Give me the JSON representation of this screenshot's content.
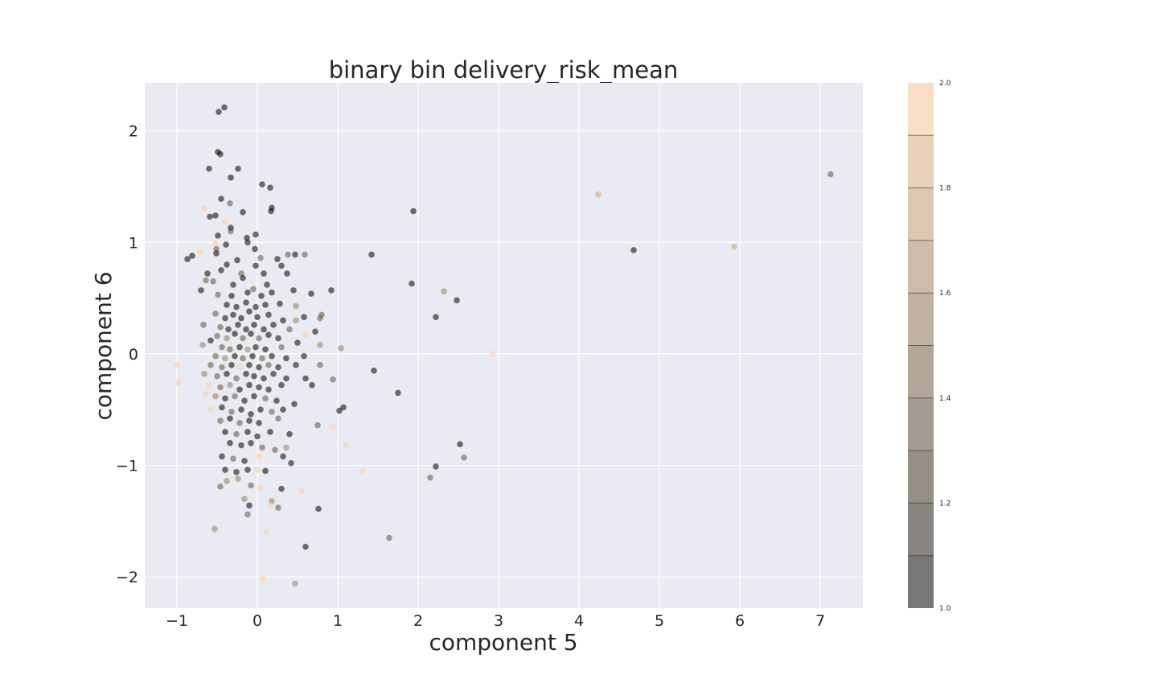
{
  "chart_data": {
    "type": "scatter",
    "title": "binary bin delivery_risk_mean",
    "xlabel": "component 5",
    "ylabel": "component 6",
    "xlim": [
      -1.4,
      7.53
    ],
    "ylim": [
      -2.28,
      2.43
    ],
    "xticks": [
      -1,
      0,
      1,
      2,
      3,
      4,
      5,
      6,
      7
    ],
    "yticks": [
      -2,
      -1,
      0,
      1,
      2
    ],
    "xtick_labels": [
      "−1",
      "0",
      "1",
      "2",
      "3",
      "4",
      "5",
      "6",
      "7"
    ],
    "ytick_labels": [
      "−2",
      "−1",
      "0",
      "1",
      "2"
    ],
    "grid": true,
    "background": "#eaeaf2",
    "colorbar": {
      "range": [
        1.0,
        2.0
      ],
      "ticks": [
        "1.0",
        "1.2",
        "1.4",
        "1.6",
        "1.8",
        "2.0"
      ],
      "levels": 10,
      "colormap_low": "#000000",
      "colormap_high": "#ffcc99"
    },
    "points": [
      {
        "x": -0.41,
        "y": 2.21,
        "c": 1
      },
      {
        "x": -0.48,
        "y": 2.17,
        "c": 1
      },
      {
        "x": -0.49,
        "y": 1.81,
        "c": 1
      },
      {
        "x": -0.46,
        "y": 1.79,
        "c": 1
      },
      {
        "x": -0.6,
        "y": 1.66,
        "c": 1
      },
      {
        "x": -0.24,
        "y": 1.66,
        "c": 1
      },
      {
        "x": -0.33,
        "y": 1.58,
        "c": 1
      },
      {
        "x": 0.06,
        "y": 1.52,
        "c": 1
      },
      {
        "x": 0.16,
        "y": 1.49,
        "c": 1
      },
      {
        "x": -0.45,
        "y": 1.39,
        "c": 1
      },
      {
        "x": -0.34,
        "y": 1.35,
        "c": 1.4
      },
      {
        "x": 0.18,
        "y": 1.31,
        "c": 1
      },
      {
        "x": 0.17,
        "y": 1.28,
        "c": 1
      },
      {
        "x": -0.18,
        "y": 1.27,
        "c": 1
      },
      {
        "x": -0.66,
        "y": 1.3,
        "c": 2
      },
      {
        "x": -0.59,
        "y": 1.23,
        "c": 1
      },
      {
        "x": -0.52,
        "y": 1.24,
        "c": 1
      },
      {
        "x": -0.4,
        "y": 1.18,
        "c": 2
      },
      {
        "x": -0.33,
        "y": 1.13,
        "c": 1
      },
      {
        "x": -0.33,
        "y": 1.1,
        "c": 1.4
      },
      {
        "x": -0.49,
        "y": 1.06,
        "c": 1
      },
      {
        "x": -0.13,
        "y": 1.04,
        "c": 1
      },
      {
        "x": -0.02,
        "y": 1.07,
        "c": 1
      },
      {
        "x": -0.12,
        "y": 1.0,
        "c": 1
      },
      {
        "x": -0.52,
        "y": 0.99,
        "c": 2
      },
      {
        "x": -0.39,
        "y": 0.98,
        "c": 1
      },
      {
        "x": -0.51,
        "y": 0.94,
        "c": 1.4
      },
      {
        "x": -0.03,
        "y": 0.94,
        "c": 1
      },
      {
        "x": -0.71,
        "y": 0.91,
        "c": 2
      },
      {
        "x": -0.51,
        "y": 0.9,
        "c": 1
      },
      {
        "x": -0.81,
        "y": 0.88,
        "c": 1
      },
      {
        "x": -0.87,
        "y": 0.85,
        "c": 1
      },
      {
        "x": 0.04,
        "y": 0.86,
        "c": 1.4
      },
      {
        "x": -0.25,
        "y": 0.84,
        "c": 1
      },
      {
        "x": 0.25,
        "y": 0.85,
        "c": 1
      },
      {
        "x": 0.38,
        "y": 0.89,
        "c": 1.4
      },
      {
        "x": 0.47,
        "y": 0.89,
        "c": 1
      },
      {
        "x": 0.59,
        "y": 0.89,
        "c": 1.4
      },
      {
        "x": 1.42,
        "y": 0.89,
        "c": 1
      },
      {
        "x": -0.62,
        "y": 0.72,
        "c": 1
      },
      {
        "x": -0.45,
        "y": 0.75,
        "c": 1
      },
      {
        "x": -0.38,
        "y": 0.8,
        "c": 1
      },
      {
        "x": -0.2,
        "y": 0.72,
        "c": 1.4
      },
      {
        "x": -0.02,
        "y": 0.79,
        "c": 1
      },
      {
        "x": 0.3,
        "y": 0.79,
        "c": 1
      },
      {
        "x": 0.08,
        "y": 0.72,
        "c": 1
      },
      {
        "x": 0.37,
        "y": 0.72,
        "c": 1
      },
      {
        "x": -0.55,
        "y": 0.65,
        "c": 1.4
      },
      {
        "x": -0.64,
        "y": 0.66,
        "c": 1.4
      },
      {
        "x": -0.3,
        "y": 0.62,
        "c": 1
      },
      {
        "x": -0.18,
        "y": 0.68,
        "c": 1
      },
      {
        "x": -0.05,
        "y": 0.58,
        "c": 1.4
      },
      {
        "x": 0.12,
        "y": 0.62,
        "c": 1
      },
      {
        "x": -0.7,
        "y": 0.57,
        "c": 1
      },
      {
        "x": -0.49,
        "y": 0.53,
        "c": 1.4
      },
      {
        "x": -0.32,
        "y": 0.52,
        "c": 1
      },
      {
        "x": -0.12,
        "y": 0.55,
        "c": 1
      },
      {
        "x": 0.05,
        "y": 0.52,
        "c": 1
      },
      {
        "x": 0.18,
        "y": 0.55,
        "c": 1
      },
      {
        "x": 0.45,
        "y": 0.57,
        "c": 1
      },
      {
        "x": 0.67,
        "y": 0.54,
        "c": 1
      },
      {
        "x": 0.92,
        "y": 0.57,
        "c": 1
      },
      {
        "x": 1.92,
        "y": 0.63,
        "c": 1
      },
      {
        "x": 2.32,
        "y": 0.56,
        "c": 1.6
      },
      {
        "x": 2.48,
        "y": 0.48,
        "c": 1
      },
      {
        "x": 2.22,
        "y": 0.33,
        "c": 1
      },
      {
        "x": -0.38,
        "y": 0.44,
        "c": 1
      },
      {
        "x": -0.26,
        "y": 0.42,
        "c": 1
      },
      {
        "x": -0.14,
        "y": 0.46,
        "c": 1
      },
      {
        "x": -0.02,
        "y": 0.42,
        "c": 1
      },
      {
        "x": 0.1,
        "y": 0.44,
        "c": 1
      },
      {
        "x": 0.28,
        "y": 0.45,
        "c": 1
      },
      {
        "x": 0.48,
        "y": 0.43,
        "c": 1.6
      },
      {
        "x": -0.52,
        "y": 0.36,
        "c": 1.4
      },
      {
        "x": -0.4,
        "y": 0.32,
        "c": 1
      },
      {
        "x": -0.3,
        "y": 0.35,
        "c": 1
      },
      {
        "x": -0.2,
        "y": 0.32,
        "c": 1
      },
      {
        "x": -0.1,
        "y": 0.38,
        "c": 1
      },
      {
        "x": 0.0,
        "y": 0.33,
        "c": 1
      },
      {
        "x": 0.14,
        "y": 0.35,
        "c": 1
      },
      {
        "x": 0.32,
        "y": 0.3,
        "c": 1
      },
      {
        "x": 0.58,
        "y": 0.33,
        "c": 1
      },
      {
        "x": 0.78,
        "y": 0.32,
        "c": 1.4
      },
      {
        "x": 0.8,
        "y": 0.35,
        "c": 1.4
      },
      {
        "x": -0.67,
        "y": 0.26,
        "c": 1.4
      },
      {
        "x": -0.46,
        "y": 0.24,
        "c": 1.4
      },
      {
        "x": -0.36,
        "y": 0.22,
        "c": 1
      },
      {
        "x": -0.24,
        "y": 0.26,
        "c": 1
      },
      {
        "x": -0.14,
        "y": 0.22,
        "c": 1
      },
      {
        "x": -0.04,
        "y": 0.26,
        "c": 1
      },
      {
        "x": 0.08,
        "y": 0.22,
        "c": 1
      },
      {
        "x": 0.2,
        "y": 0.26,
        "c": 1
      },
      {
        "x": 0.4,
        "y": 0.22,
        "c": 1.4
      },
      {
        "x": 0.48,
        "y": 0.3,
        "c": 1.6
      },
      {
        "x": 0.72,
        "y": 0.2,
        "c": 1
      },
      {
        "x": -0.5,
        "y": 0.16,
        "c": 1.4
      },
      {
        "x": -0.38,
        "y": 0.14,
        "c": 1.6
      },
      {
        "x": -0.28,
        "y": 0.18,
        "c": 1
      },
      {
        "x": -0.18,
        "y": 0.14,
        "c": 1.4
      },
      {
        "x": -0.08,
        "y": 0.18,
        "c": 1
      },
      {
        "x": 0.02,
        "y": 0.14,
        "c": 1.4
      },
      {
        "x": 0.14,
        "y": 0.17,
        "c": 1
      },
      {
        "x": 0.26,
        "y": 0.14,
        "c": 1
      },
      {
        "x": 0.6,
        "y": 0.17,
        "c": 2
      },
      {
        "x": -0.58,
        "y": 0.12,
        "c": 1
      },
      {
        "x": -0.68,
        "y": 0.08,
        "c": 1.6
      },
      {
        "x": -0.44,
        "y": 0.06,
        "c": 1.4
      },
      {
        "x": -0.34,
        "y": 0.04,
        "c": 1.4
      },
      {
        "x": -0.22,
        "y": 0.06,
        "c": 1
      },
      {
        "x": -0.12,
        "y": 0.04,
        "c": 1.6
      },
      {
        "x": -0.02,
        "y": 0.06,
        "c": 1
      },
      {
        "x": 0.1,
        "y": 0.04,
        "c": 1
      },
      {
        "x": 0.3,
        "y": 0.06,
        "c": 1.4
      },
      {
        "x": 0.5,
        "y": 0.1,
        "c": 1
      },
      {
        "x": 0.78,
        "y": 0.08,
        "c": 1.6
      },
      {
        "x": 1.04,
        "y": 0.05,
        "c": 1.6
      },
      {
        "x": -0.52,
        "y": -0.02,
        "c": 1.4
      },
      {
        "x": -0.4,
        "y": -0.04,
        "c": 1.6
      },
      {
        "x": -0.28,
        "y": -0.02,
        "c": 1
      },
      {
        "x": -0.18,
        "y": -0.04,
        "c": 1.4
      },
      {
        "x": -0.06,
        "y": -0.02,
        "c": 1
      },
      {
        "x": 0.06,
        "y": -0.04,
        "c": 1.4
      },
      {
        "x": 0.18,
        "y": -0.02,
        "c": 1
      },
      {
        "x": 0.36,
        "y": -0.04,
        "c": 1
      },
      {
        "x": 0.58,
        "y": -0.02,
        "c": 1
      },
      {
        "x": 2.93,
        "y": 0.0,
        "c": 2
      },
      {
        "x": -1.0,
        "y": -0.1,
        "c": 2
      },
      {
        "x": -0.98,
        "y": -0.26,
        "c": 2
      },
      {
        "x": -0.58,
        "y": -0.1,
        "c": 1.4
      },
      {
        "x": -0.44,
        "y": -0.12,
        "c": 1.4
      },
      {
        "x": -0.32,
        "y": -0.1,
        "c": 1
      },
      {
        "x": -0.22,
        "y": -0.12,
        "c": 2
      },
      {
        "x": -0.1,
        "y": -0.1,
        "c": 1
      },
      {
        "x": 0.02,
        "y": -0.12,
        "c": 1
      },
      {
        "x": 0.14,
        "y": -0.1,
        "c": 1.4
      },
      {
        "x": 0.26,
        "y": -0.12,
        "c": 1
      },
      {
        "x": 0.48,
        "y": -0.1,
        "c": 1
      },
      {
        "x": 0.78,
        "y": -0.1,
        "c": 1.4
      },
      {
        "x": 1.45,
        "y": -0.15,
        "c": 1
      },
      {
        "x": -0.66,
        "y": -0.18,
        "c": 1.6
      },
      {
        "x": -0.5,
        "y": -0.2,
        "c": 1.4
      },
      {
        "x": -0.38,
        "y": -0.18,
        "c": 1
      },
      {
        "x": -0.26,
        "y": -0.22,
        "c": 1.4
      },
      {
        "x": -0.14,
        "y": -0.18,
        "c": 1
      },
      {
        "x": -0.04,
        "y": -0.2,
        "c": 1
      },
      {
        "x": 0.08,
        "y": -0.22,
        "c": 1
      },
      {
        "x": 0.2,
        "y": -0.18,
        "c": 1
      },
      {
        "x": 0.36,
        "y": -0.22,
        "c": 1
      },
      {
        "x": 0.6,
        "y": -0.22,
        "c": 1
      },
      {
        "x": 0.94,
        "y": -0.23,
        "c": 1.4
      },
      {
        "x": -0.6,
        "y": -0.28,
        "c": 2
      },
      {
        "x": -0.46,
        "y": -0.3,
        "c": 1.4
      },
      {
        "x": -0.34,
        "y": -0.28,
        "c": 1.6
      },
      {
        "x": -0.22,
        "y": -0.32,
        "c": 1
      },
      {
        "x": -0.1,
        "y": -0.28,
        "c": 1
      },
      {
        "x": 0.02,
        "y": -0.3,
        "c": 1
      },
      {
        "x": 0.14,
        "y": -0.32,
        "c": 1
      },
      {
        "x": 0.3,
        "y": -0.28,
        "c": 1
      },
      {
        "x": 0.68,
        "y": -0.28,
        "c": 1
      },
      {
        "x": 1.75,
        "y": -0.35,
        "c": 1
      },
      {
        "x": -0.64,
        "y": -0.36,
        "c": 2
      },
      {
        "x": -0.52,
        "y": -0.38,
        "c": 1.6
      },
      {
        "x": -0.4,
        "y": -0.4,
        "c": 1
      },
      {
        "x": -0.28,
        "y": -0.38,
        "c": 1.4
      },
      {
        "x": -0.16,
        "y": -0.42,
        "c": 1
      },
      {
        "x": -0.04,
        "y": -0.38,
        "c": 1
      },
      {
        "x": 0.1,
        "y": -0.4,
        "c": 1.4
      },
      {
        "x": 0.24,
        "y": -0.42,
        "c": 1
      },
      {
        "x": 0.46,
        "y": -0.45,
        "c": 1
      },
      {
        "x": -0.58,
        "y": -0.5,
        "c": 2
      },
      {
        "x": -0.44,
        "y": -0.48,
        "c": 1
      },
      {
        "x": -0.32,
        "y": -0.52,
        "c": 1.4
      },
      {
        "x": -0.2,
        "y": -0.5,
        "c": 1
      },
      {
        "x": -0.08,
        "y": -0.54,
        "c": 1
      },
      {
        "x": 0.04,
        "y": -0.5,
        "c": 1
      },
      {
        "x": 0.18,
        "y": -0.52,
        "c": 1.4
      },
      {
        "x": 0.32,
        "y": -0.5,
        "c": 1
      },
      {
        "x": 1.02,
        "y": -0.51,
        "c": 1
      },
      {
        "x": 1.07,
        "y": -0.48,
        "c": 1
      },
      {
        "x": -0.46,
        "y": -0.6,
        "c": 1.4
      },
      {
        "x": -0.34,
        "y": -0.58,
        "c": 1
      },
      {
        "x": -0.22,
        "y": -0.62,
        "c": 1.4
      },
      {
        "x": -0.1,
        "y": -0.6,
        "c": 1
      },
      {
        "x": 0.02,
        "y": -0.62,
        "c": 1
      },
      {
        "x": 0.26,
        "y": -0.58,
        "c": 1.4
      },
      {
        "x": 0.75,
        "y": -0.64,
        "c": 1.4
      },
      {
        "x": 0.94,
        "y": -0.66,
        "c": 2
      },
      {
        "x": -0.4,
        "y": -0.7,
        "c": 1
      },
      {
        "x": -0.26,
        "y": -0.72,
        "c": 1.4
      },
      {
        "x": -0.12,
        "y": -0.7,
        "c": 1
      },
      {
        "x": 0.0,
        "y": -0.74,
        "c": 1
      },
      {
        "x": 0.16,
        "y": -0.7,
        "c": 1
      },
      {
        "x": 0.4,
        "y": -0.72,
        "c": 1
      },
      {
        "x": -0.34,
        "y": -0.8,
        "c": 1
      },
      {
        "x": -0.2,
        "y": -0.82,
        "c": 1
      },
      {
        "x": -0.08,
        "y": -0.8,
        "c": 1
      },
      {
        "x": 0.06,
        "y": -0.84,
        "c": 1.4
      },
      {
        "x": 0.22,
        "y": -0.86,
        "c": 1.4
      },
      {
        "x": 0.36,
        "y": -0.84,
        "c": 1.6
      },
      {
        "x": 1.1,
        "y": -0.82,
        "c": 2
      },
      {
        "x": 2.52,
        "y": -0.81,
        "c": 1
      },
      {
        "x": 2.57,
        "y": -0.93,
        "c": 1.4
      },
      {
        "x": -0.44,
        "y": -0.92,
        "c": 1
      },
      {
        "x": -0.3,
        "y": -0.94,
        "c": 1.4
      },
      {
        "x": -0.16,
        "y": -0.96,
        "c": 1
      },
      {
        "x": 0.02,
        "y": -0.92,
        "c": 2
      },
      {
        "x": 0.32,
        "y": -0.92,
        "c": 1
      },
      {
        "x": 0.42,
        "y": -0.98,
        "c": 1
      },
      {
        "x": -0.4,
        "y": -1.04,
        "c": 1
      },
      {
        "x": -0.26,
        "y": -1.06,
        "c": 1
      },
      {
        "x": -0.12,
        "y": -1.04,
        "c": 1
      },
      {
        "x": 0.0,
        "y": -1.04,
        "c": 2
      },
      {
        "x": 0.1,
        "y": -1.05,
        "c": 1
      },
      {
        "x": 1.31,
        "y": -1.05,
        "c": 2
      },
      {
        "x": 2.22,
        "y": -1.01,
        "c": 1
      },
      {
        "x": 2.15,
        "y": -1.11,
        "c": 1.4
      },
      {
        "x": -0.38,
        "y": -1.14,
        "c": 1.6
      },
      {
        "x": -0.24,
        "y": -1.12,
        "c": 1.6
      },
      {
        "x": -0.08,
        "y": -1.18,
        "c": 1.4
      },
      {
        "x": 0.04,
        "y": -1.2,
        "c": 2
      },
      {
        "x": 0.3,
        "y": -1.21,
        "c": 1
      },
      {
        "x": -0.46,
        "y": -1.19,
        "c": 1.4
      },
      {
        "x": 0.55,
        "y": -1.23,
        "c": 2
      },
      {
        "x": -0.16,
        "y": -1.3,
        "c": 1.6
      },
      {
        "x": 0.18,
        "y": -1.32,
        "c": 1.6
      },
      {
        "x": -0.1,
        "y": -1.36,
        "c": 1
      },
      {
        "x": 0.16,
        "y": -1.36,
        "c": 2
      },
      {
        "x": 0.26,
        "y": -1.38,
        "c": 1.4
      },
      {
        "x": 0.76,
        "y": -1.39,
        "c": 1
      },
      {
        "x": -0.12,
        "y": -1.44,
        "c": 1.4
      },
      {
        "x": -0.53,
        "y": -1.57,
        "c": 1.6
      },
      {
        "x": 0.11,
        "y": -1.6,
        "c": 2
      },
      {
        "x": 1.64,
        "y": -1.65,
        "c": 1.4
      },
      {
        "x": 0.6,
        "y": -1.73,
        "c": 1
      },
      {
        "x": 0.07,
        "y": -2.01,
        "c": 2
      },
      {
        "x": 0.47,
        "y": -2.06,
        "c": 1.6
      },
      {
        "x": 1.94,
        "y": 1.28,
        "c": 1
      },
      {
        "x": 4.24,
        "y": 1.43,
        "c": 1.8
      },
      {
        "x": 4.68,
        "y": 0.93,
        "c": 1
      },
      {
        "x": 5.93,
        "y": 0.96,
        "c": 1.8
      },
      {
        "x": 7.13,
        "y": 1.61,
        "c": 1.4
      }
    ]
  }
}
